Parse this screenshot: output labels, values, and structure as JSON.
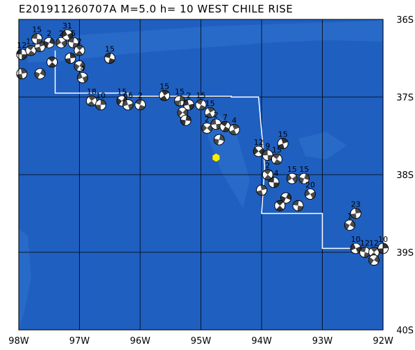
{
  "title": "E201911260707A  M=5.0  h= 10 WEST CHILE RISE",
  "map": {
    "lon_range": [
      -98,
      -92
    ],
    "lat_range": [
      -40,
      -36
    ],
    "ocean_color": "#1f5fc0",
    "ocean_light_color": "#2f72cc",
    "grid_color": "#000000",
    "boundary_color": "#ffffff",
    "epicenter_color": "#ffee00",
    "x_ticks": [
      {
        "lon": -98,
        "label": "98W"
      },
      {
        "lon": -97,
        "label": "97W"
      },
      {
        "lon": -96,
        "label": "96W"
      },
      {
        "lon": -95,
        "label": "95W"
      },
      {
        "lon": -94,
        "label": "94W"
      },
      {
        "lon": -93,
        "label": "93W"
      },
      {
        "lon": -92,
        "label": "92W"
      }
    ],
    "y_ticks": [
      {
        "lat": -36,
        "label": "36S"
      },
      {
        "lat": -37,
        "label": "37S"
      },
      {
        "lat": -38,
        "label": "38S"
      },
      {
        "lat": -39,
        "label": "39S"
      },
      {
        "lat": -40,
        "label": "40S"
      }
    ],
    "epicenter": {
      "lon": -94.75,
      "lat": -37.78
    },
    "plate_boundary": [
      [
        -97.4,
        -36.4
      ],
      [
        -97.4,
        -36.95
      ],
      [
        -96.2,
        -36.95
      ],
      [
        -96.2,
        -36.99
      ],
      [
        -94.5,
        -36.99
      ],
      [
        -94.5,
        -37.0
      ],
      [
        -94.05,
        -37.0
      ],
      [
        -94.05,
        -37.0
      ],
      [
        -93.95,
        -37.9
      ],
      [
        -94.0,
        -38.5
      ],
      [
        -93.3,
        -38.5
      ],
      [
        -93.0,
        -38.5
      ],
      [
        -93.0,
        -38.95
      ],
      [
        -92.4,
        -38.95
      ]
    ],
    "mechanisms": [
      {
        "lon": -97.95,
        "lat": -36.45,
        "label": "12"
      },
      {
        "lon": -97.8,
        "lat": -36.4,
        "label": "15"
      },
      {
        "lon": -97.65,
        "lat": -36.35,
        "label": "8"
      },
      {
        "lon": -97.5,
        "lat": -36.3,
        "label": "2"
      },
      {
        "lon": -97.3,
        "lat": -36.3,
        "label": "2"
      },
      {
        "lon": -97.7,
        "lat": -36.25,
        "label": "15"
      },
      {
        "lon": -97.45,
        "lat": -36.55,
        "label": ""
      },
      {
        "lon": -97.95,
        "lat": -36.7,
        "label": ""
      },
      {
        "lon": -97.65,
        "lat": -36.7,
        "label": ""
      },
      {
        "lon": -97.2,
        "lat": -36.2,
        "label": "31"
      },
      {
        "lon": -97.1,
        "lat": -36.3,
        "label": "5"
      },
      {
        "lon": -97.0,
        "lat": -36.4,
        "label": "2"
      },
      {
        "lon": -97.15,
        "lat": -36.5,
        "label": ""
      },
      {
        "lon": -97.0,
        "lat": -36.6,
        "label": ""
      },
      {
        "lon": -96.95,
        "lat": -36.75,
        "label": "4"
      },
      {
        "lon": -96.5,
        "lat": -36.5,
        "label": "15"
      },
      {
        "lon": -96.8,
        "lat": -37.05,
        "label": "18"
      },
      {
        "lon": -96.65,
        "lat": -37.1,
        "label": "10"
      },
      {
        "lon": -96.3,
        "lat": -37.05,
        "label": "15"
      },
      {
        "lon": -96.2,
        "lat": -37.1,
        "label": "66"
      },
      {
        "lon": -96.0,
        "lat": -37.1,
        "label": "2"
      },
      {
        "lon": -95.6,
        "lat": -36.98,
        "label": "15"
      },
      {
        "lon": -95.35,
        "lat": -37.05,
        "label": "15"
      },
      {
        "lon": -95.3,
        "lat": -37.2,
        "label": "15"
      },
      {
        "lon": -95.2,
        "lat": -37.1,
        "label": "2"
      },
      {
        "lon": -95.0,
        "lat": -37.1,
        "label": "15"
      },
      {
        "lon": -94.85,
        "lat": -37.2,
        "label": "15"
      },
      {
        "lon": -95.25,
        "lat": -37.3,
        "label": ""
      },
      {
        "lon": -94.9,
        "lat": -37.4,
        "label": "2"
      },
      {
        "lon": -94.75,
        "lat": -37.35,
        "label": "2"
      },
      {
        "lon": -94.6,
        "lat": -37.38,
        "label": "7"
      },
      {
        "lon": -94.45,
        "lat": -37.42,
        "label": "4"
      },
      {
        "lon": -94.7,
        "lat": -37.55,
        "label": ""
      },
      {
        "lon": -94.05,
        "lat": -37.7,
        "label": "12"
      },
      {
        "lon": -93.9,
        "lat": -37.75,
        "label": "9"
      },
      {
        "lon": -93.75,
        "lat": -37.8,
        "label": "15"
      },
      {
        "lon": -93.65,
        "lat": -37.6,
        "label": "15"
      },
      {
        "lon": -93.3,
        "lat": -38.05,
        "label": "15"
      },
      {
        "lon": -93.5,
        "lat": -38.05,
        "label": "15"
      },
      {
        "lon": -93.8,
        "lat": -38.1,
        "label": "14"
      },
      {
        "lon": -93.9,
        "lat": -38.0,
        "label": "2"
      },
      {
        "lon": -94.0,
        "lat": -38.2,
        "label": ""
      },
      {
        "lon": -93.6,
        "lat": -38.3,
        "label": ""
      },
      {
        "lon": -93.2,
        "lat": -38.25,
        "label": "20"
      },
      {
        "lon": -93.4,
        "lat": -38.4,
        "label": ""
      },
      {
        "lon": -93.7,
        "lat": -38.4,
        "label": ""
      },
      {
        "lon": -92.45,
        "lat": -38.5,
        "label": "23"
      },
      {
        "lon": -92.55,
        "lat": -38.65,
        "label": "1"
      },
      {
        "lon": -92.45,
        "lat": -38.95,
        "label": "10"
      },
      {
        "lon": -92.3,
        "lat": -39.0,
        "label": "12"
      },
      {
        "lon": -92.15,
        "lat": -39.0,
        "label": "12"
      },
      {
        "lon": -92.0,
        "lat": -38.95,
        "label": "10"
      },
      {
        "lon": -92.15,
        "lat": -39.1,
        "label": ""
      }
    ]
  }
}
